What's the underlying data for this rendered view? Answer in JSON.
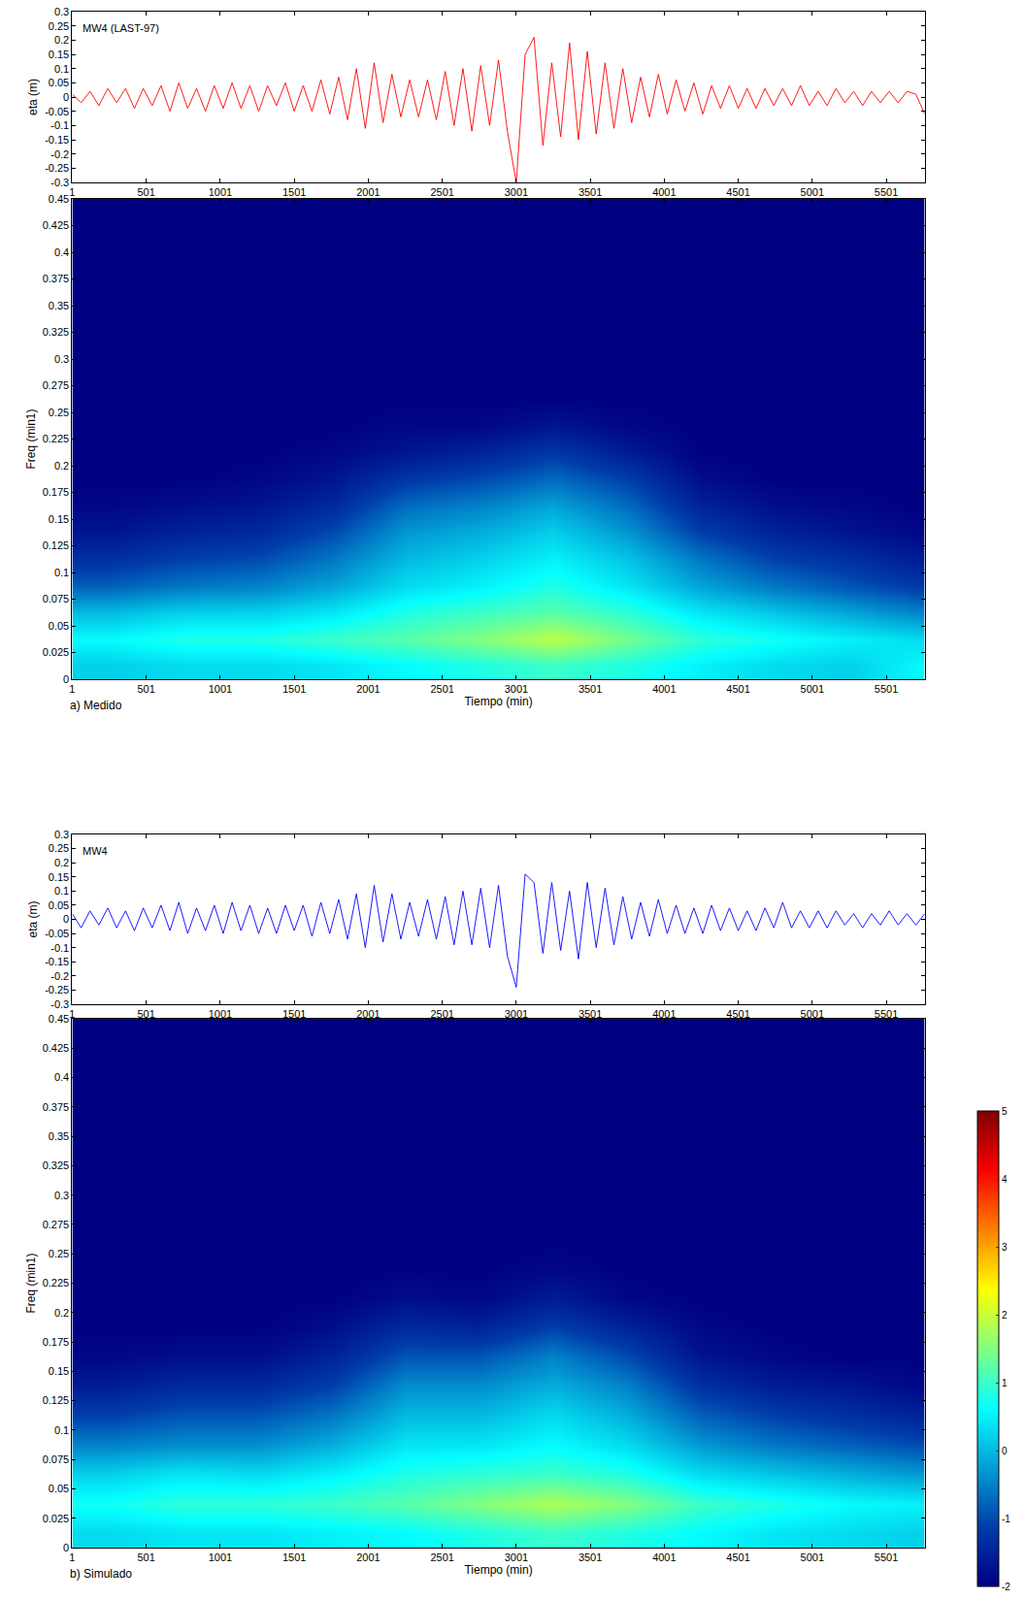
{
  "chart_data": [
    {
      "type": "line",
      "annotation": "MW4 (LAST-97)",
      "y_label": "eta (m)",
      "x": [
        1,
        61,
        121,
        181,
        241,
        301,
        361,
        421,
        481,
        541,
        601,
        661,
        721,
        781,
        841,
        901,
        961,
        1021,
        1081,
        1141,
        1201,
        1261,
        1321,
        1381,
        1441,
        1501,
        1561,
        1621,
        1681,
        1741,
        1801,
        1861,
        1921,
        1981,
        2041,
        2101,
        2161,
        2221,
        2281,
        2341,
        2401,
        2461,
        2521,
        2581,
        2641,
        2701,
        2761,
        2821,
        2881,
        2941,
        3001,
        3061,
        3121,
        3181,
        3241,
        3301,
        3361,
        3421,
        3481,
        3541,
        3601,
        3661,
        3721,
        3781,
        3841,
        3901,
        3961,
        4021,
        4081,
        4141,
        4201,
        4261,
        4321,
        4381,
        4441,
        4501,
        4561,
        4621,
        4681,
        4741,
        4801,
        4861,
        4921,
        4981,
        5041,
        5101,
        5161,
        5221,
        5281,
        5341,
        5401,
        5461,
        5521,
        5581,
        5641,
        5701,
        5761
      ],
      "series": [
        {
          "color": "#ff0000",
          "values": [
            0.01,
            -0.02,
            0.02,
            -0.03,
            0.03,
            -0.02,
            0.03,
            -0.04,
            0.03,
            -0.03,
            0.04,
            -0.05,
            0.05,
            -0.04,
            0.03,
            -0.05,
            0.04,
            -0.04,
            0.05,
            -0.04,
            0.04,
            -0.05,
            0.04,
            -0.03,
            0.05,
            -0.05,
            0.04,
            -0.05,
            0.06,
            -0.06,
            0.07,
            -0.08,
            0.1,
            -0.11,
            0.12,
            -0.09,
            0.08,
            -0.07,
            0.06,
            -0.07,
            0.06,
            -0.08,
            0.09,
            -0.1,
            0.1,
            -0.12,
            0.11,
            -0.1,
            0.13,
            -0.12,
            -0.3,
            0.15,
            0.21,
            -0.17,
            0.12,
            -0.14,
            0.19,
            -0.15,
            0.16,
            -0.13,
            0.12,
            -0.11,
            0.1,
            -0.09,
            0.07,
            -0.07,
            0.08,
            -0.06,
            0.06,
            -0.05,
            0.05,
            -0.06,
            0.04,
            -0.04,
            0.04,
            -0.04,
            0.03,
            -0.04,
            0.03,
            -0.03,
            0.03,
            -0.03,
            0.04,
            -0.03,
            0.02,
            -0.03,
            0.03,
            -0.02,
            0.02,
            -0.03,
            0.02,
            -0.02,
            0.02,
            -0.02,
            0.02,
            0.01,
            -0.06
          ]
        }
      ],
      "xlim": [
        1,
        5761
      ],
      "xticks": [
        1,
        501,
        1001,
        1501,
        2001,
        2501,
        3001,
        3501,
        4001,
        4501,
        5001,
        5501
      ],
      "ylim": [
        -0.3,
        0.3
      ],
      "yticks": [
        -0.3,
        -0.25,
        -0.2,
        -0.15,
        -0.1,
        -0.05,
        0,
        0.05,
        0.1,
        0.15,
        0.2,
        0.25,
        0.3
      ]
    },
    {
      "type": "heatmap",
      "caption": "a) Medido",
      "x_label": "Tiempo (min)",
      "y_label": "Freq (min1)",
      "x": [
        251,
        751,
        1251,
        1751,
        2251,
        2751,
        3251,
        3751,
        4251,
        4751,
        5251,
        5751
      ],
      "y": [
        0.0125,
        0.0375,
        0.0625,
        0.0875,
        0.1125,
        0.1375,
        0.1625,
        0.1875,
        0.2125,
        0.2375,
        0.2625,
        0.2875,
        0.3125,
        0.3375,
        0.3625,
        0.3875,
        0.4125,
        0.4375
      ],
      "z": [
        [
          0.2,
          0.3,
          0.3,
          0.4,
          0.6,
          0.8,
          1.0,
          0.8,
          0.5,
          0.3,
          0.2,
          0.6
        ],
        [
          0.6,
          0.8,
          0.8,
          1.0,
          1.2,
          1.5,
          1.9,
          1.4,
          0.9,
          0.7,
          0.5,
          0.3
        ],
        [
          0.0,
          0.2,
          0.2,
          0.4,
          0.8,
          1.0,
          1.2,
          0.9,
          0.4,
          0.1,
          -0.2,
          -0.5
        ],
        [
          -0.8,
          -0.6,
          -0.5,
          -0.2,
          0.3,
          0.5,
          0.8,
          0.4,
          -0.2,
          -0.6,
          -0.9,
          -1.2
        ],
        [
          -1.3,
          -1.1,
          -1.0,
          -0.6,
          0.0,
          0.2,
          0.5,
          0.1,
          -0.6,
          -1.1,
          -1.3,
          -1.6
        ],
        [
          -1.7,
          -1.5,
          -1.4,
          -1.0,
          -0.3,
          -0.1,
          0.2,
          -0.3,
          -1.1,
          -1.5,
          -1.7,
          -1.9
        ],
        [
          -1.9,
          -1.8,
          -1.7,
          -1.4,
          -0.7,
          -0.5,
          -0.2,
          -0.7,
          -1.5,
          -1.8,
          -1.9,
          -2
        ],
        [
          -2,
          -2,
          -1.9,
          -1.7,
          -1.2,
          -1.0,
          -0.7,
          -1.1,
          -1.8,
          -2,
          -2,
          -2
        ],
        [
          -2,
          -2,
          -2,
          -1.9,
          -1.7,
          -1.5,
          -1.2,
          -1.6,
          -2,
          -2,
          -2,
          -2
        ],
        [
          -2,
          -2,
          -2,
          -2,
          -1.9,
          -1.9,
          -1.7,
          -1.9,
          -2,
          -2,
          -2,
          -2
        ],
        [
          -2,
          -2,
          -2,
          -2,
          -2,
          -2,
          -2,
          -2,
          -2,
          -2,
          -2,
          -2
        ],
        [
          -2,
          -2,
          -2,
          -2,
          -2,
          -2,
          -2,
          -2,
          -2,
          -2,
          -2,
          -2
        ],
        [
          -2,
          -2,
          -2,
          -2,
          -2,
          -2,
          -2,
          -2,
          -2,
          -2,
          -2,
          -2
        ],
        [
          -2,
          -2,
          -2,
          -2,
          -2,
          -2,
          -2,
          -2,
          -2,
          -2,
          -2,
          -2
        ],
        [
          -2,
          -2,
          -2,
          -2,
          -2,
          -2,
          -2,
          -2,
          -2,
          -2,
          -2,
          -2
        ],
        [
          -2,
          -2,
          -2,
          -2,
          -2,
          -2,
          -2,
          -2,
          -2,
          -2,
          -2,
          -2
        ],
        [
          -2,
          -2,
          -2,
          -2,
          -2,
          -2,
          -2,
          -2,
          -2,
          -2,
          -2,
          -2
        ],
        [
          -2,
          -2,
          -2,
          -2,
          -2,
          -2,
          -2,
          -2,
          -2,
          -2,
          -2,
          -2
        ]
      ],
      "zlim": [
        -2,
        5
      ],
      "xlim": [
        1,
        5761
      ],
      "xticks": [
        1,
        501,
        1001,
        1501,
        2001,
        2501,
        3001,
        3501,
        4001,
        4501,
        5001,
        5501
      ],
      "ylim": [
        0,
        0.45
      ],
      "yticks": [
        0,
        0.025,
        0.05,
        0.075,
        0.1,
        0.125,
        0.15,
        0.175,
        0.2,
        0.225,
        0.25,
        0.275,
        0.3,
        0.325,
        0.35,
        0.375,
        0.4,
        0.425,
        0.45
      ]
    },
    {
      "type": "line",
      "annotation": "MW4",
      "y_label": "eta (m)",
      "x": [
        1,
        61,
        121,
        181,
        241,
        301,
        361,
        421,
        481,
        541,
        601,
        661,
        721,
        781,
        841,
        901,
        961,
        1021,
        1081,
        1141,
        1201,
        1261,
        1321,
        1381,
        1441,
        1501,
        1561,
        1621,
        1681,
        1741,
        1801,
        1861,
        1921,
        1981,
        2041,
        2101,
        2161,
        2221,
        2281,
        2341,
        2401,
        2461,
        2521,
        2581,
        2641,
        2701,
        2761,
        2821,
        2881,
        2941,
        3001,
        3061,
        3121,
        3181,
        3241,
        3301,
        3361,
        3421,
        3481,
        3541,
        3601,
        3661,
        3721,
        3781,
        3841,
        3901,
        3961,
        4021,
        4081,
        4141,
        4201,
        4261,
        4321,
        4381,
        4441,
        4501,
        4561,
        4621,
        4681,
        4741,
        4801,
        4861,
        4921,
        4981,
        5041,
        5101,
        5161,
        5221,
        5281,
        5341,
        5401,
        5461,
        5521,
        5581,
        5641,
        5701,
        5761
      ],
      "series": [
        {
          "color": "#0000ff",
          "values": [
            0.02,
            -0.03,
            0.03,
            -0.02,
            0.04,
            -0.03,
            0.03,
            -0.04,
            0.04,
            -0.03,
            0.05,
            -0.04,
            0.06,
            -0.05,
            0.04,
            -0.04,
            0.05,
            -0.05,
            0.06,
            -0.04,
            0.05,
            -0.05,
            0.04,
            -0.05,
            0.05,
            -0.04,
            0.05,
            -0.06,
            0.06,
            -0.05,
            0.07,
            -0.07,
            0.09,
            -0.1,
            0.12,
            -0.08,
            0.09,
            -0.07,
            0.06,
            -0.06,
            0.07,
            -0.07,
            0.08,
            -0.09,
            0.1,
            -0.09,
            0.11,
            -0.1,
            0.12,
            -0.13,
            -0.24,
            0.16,
            0.13,
            -0.12,
            0.13,
            -0.11,
            0.1,
            -0.14,
            0.13,
            -0.1,
            0.11,
            -0.09,
            0.08,
            -0.07,
            0.06,
            -0.06,
            0.07,
            -0.05,
            0.05,
            -0.05,
            0.04,
            -0.05,
            0.05,
            -0.04,
            0.04,
            -0.04,
            0.03,
            -0.04,
            0.04,
            -0.03,
            0.06,
            -0.03,
            0.03,
            -0.03,
            0.03,
            -0.03,
            0.03,
            -0.02,
            0.02,
            -0.03,
            0.02,
            -0.02,
            0.03,
            -0.02,
            0.02,
            -0.02,
            0.02
          ]
        }
      ],
      "xlim": [
        1,
        5761
      ],
      "xticks": [
        1,
        501,
        1001,
        1501,
        2001,
        2501,
        3001,
        3501,
        4001,
        4501,
        5001,
        5501
      ],
      "ylim": [
        -0.3,
        0.3
      ],
      "yticks": [
        -0.3,
        -0.25,
        -0.2,
        -0.15,
        -0.1,
        -0.05,
        0,
        0.05,
        0.1,
        0.15,
        0.2,
        0.25,
        0.3
      ]
    },
    {
      "type": "heatmap",
      "caption": "b) Simulado",
      "x_label": "Tiempo (min)",
      "y_label": "Freq (min1)",
      "x": [
        251,
        751,
        1251,
        1751,
        2251,
        2751,
        3251,
        3751,
        4251,
        4751,
        5251,
        5751
      ],
      "y": [
        0.0125,
        0.0375,
        0.0625,
        0.0875,
        0.1125,
        0.1375,
        0.1625,
        0.1875,
        0.2125,
        0.2375,
        0.2625,
        0.2875,
        0.3125,
        0.3375,
        0.3625,
        0.3875,
        0.4125,
        0.4375
      ],
      "z": [
        [
          0.3,
          0.4,
          0.4,
          0.5,
          0.6,
          0.8,
          1.0,
          0.8,
          0.6,
          0.4,
          0.3,
          0.2
        ],
        [
          0.7,
          0.9,
          0.9,
          1.0,
          1.2,
          1.5,
          1.8,
          1.5,
          1.0,
          0.8,
          0.6,
          0.5
        ],
        [
          0.2,
          0.4,
          0.3,
          0.5,
          0.8,
          0.9,
          1.0,
          0.8,
          0.3,
          0.1,
          -0.1,
          -0.3
        ],
        [
          -0.5,
          -0.4,
          -0.4,
          -0.1,
          0.4,
          0.4,
          0.6,
          0.3,
          -0.3,
          -0.6,
          -0.8,
          -1.0
        ],
        [
          -1.1,
          -0.9,
          -0.9,
          -0.6,
          0.0,
          0.0,
          0.3,
          -0.1,
          -0.8,
          -1.1,
          -1.3,
          -1.5
        ],
        [
          -1.6,
          -1.4,
          -1.4,
          -1.1,
          -0.4,
          -0.4,
          -0.1,
          -0.5,
          -1.3,
          -1.6,
          -1.7,
          -1.9
        ],
        [
          -1.9,
          -1.8,
          -1.8,
          -1.5,
          -0.9,
          -0.9,
          -0.5,
          -1.0,
          -1.7,
          -1.9,
          -2,
          -2
        ],
        [
          -2,
          -2,
          -2,
          -1.8,
          -1.4,
          -1.5,
          -1.1,
          -1.5,
          -1.9,
          -2,
          -2,
          -2
        ],
        [
          -2,
          -2,
          -2,
          -2,
          -1.8,
          -1.9,
          -1.6,
          -1.9,
          -2,
          -2,
          -2,
          -2
        ],
        [
          -2,
          -2,
          -2,
          -2,
          -2,
          -2,
          -1.9,
          -2,
          -2,
          -2,
          -2,
          -2
        ],
        [
          -2,
          -2,
          -2,
          -2,
          -2,
          -2,
          -2,
          -2,
          -2,
          -2,
          -2,
          -2
        ],
        [
          -2,
          -2,
          -2,
          -2,
          -2,
          -2,
          -2,
          -2,
          -2,
          -2,
          -2,
          -2
        ],
        [
          -2,
          -2,
          -2,
          -2,
          -2,
          -2,
          -2,
          -2,
          -2,
          -2,
          -2,
          -2
        ],
        [
          -2,
          -2,
          -2,
          -2,
          -2,
          -2,
          -2,
          -2,
          -2,
          -2,
          -2,
          -2
        ],
        [
          -2,
          -2,
          -2,
          -2,
          -2,
          -2,
          -2,
          -2,
          -2,
          -2,
          -2,
          -2
        ],
        [
          -2,
          -2,
          -2,
          -2,
          -2,
          -2,
          -2,
          -2,
          -2,
          -2,
          -2,
          -2
        ],
        [
          -2,
          -2,
          -2,
          -2,
          -2,
          -2,
          -2,
          -2,
          -2,
          -2,
          -2,
          -2
        ],
        [
          -2,
          -2,
          -2,
          -2,
          -2,
          -2,
          -2,
          -2,
          -2,
          -2,
          -2,
          -2
        ]
      ],
      "zlim": [
        -2,
        5
      ],
      "colorbar_ticks": [
        -2,
        -1,
        0,
        1,
        2,
        3,
        4,
        5
      ],
      "xlim": [
        1,
        5761
      ],
      "xticks": [
        1,
        501,
        1001,
        1501,
        2001,
        2501,
        3001,
        3501,
        4001,
        4501,
        5001,
        5501
      ],
      "ylim": [
        0,
        0.45
      ],
      "yticks": [
        0,
        0.025,
        0.05,
        0.075,
        0.1,
        0.125,
        0.15,
        0.175,
        0.2,
        0.225,
        0.25,
        0.275,
        0.3,
        0.325,
        0.35,
        0.375,
        0.4,
        0.425,
        0.45
      ]
    }
  ]
}
